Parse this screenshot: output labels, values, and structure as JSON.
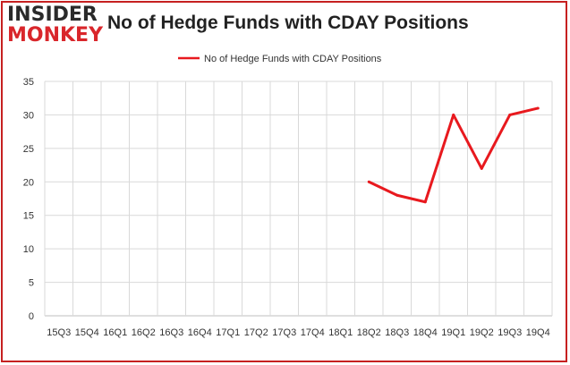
{
  "logo": {
    "line1": "INSIDER",
    "line2": "MONKEY"
  },
  "colors": {
    "series": "#e8191e",
    "frame": "#c62020",
    "grid": "#d9d9d9",
    "logo_red": "#d9262b"
  },
  "chart_data": {
    "type": "line",
    "title": "No of Hedge Funds with CDAY Positions",
    "xlabel": "",
    "ylabel": "",
    "categories": [
      "15Q3",
      "15Q4",
      "16Q1",
      "16Q2",
      "16Q3",
      "16Q4",
      "17Q1",
      "17Q2",
      "17Q3",
      "17Q4",
      "18Q1",
      "18Q2",
      "18Q3",
      "18Q4",
      "19Q1",
      "19Q2",
      "19Q3",
      "19Q4"
    ],
    "series": [
      {
        "name": "No of Hedge Funds with CDAY Positions",
        "values": [
          null,
          null,
          null,
          null,
          null,
          null,
          null,
          null,
          null,
          null,
          null,
          20,
          18,
          17,
          30,
          22,
          30,
          31
        ]
      }
    ],
    "yticks": [
      0,
      5,
      10,
      15,
      20,
      25,
      30,
      35
    ],
    "ylim": [
      0,
      35
    ],
    "grid": true,
    "legend": "top-center"
  }
}
